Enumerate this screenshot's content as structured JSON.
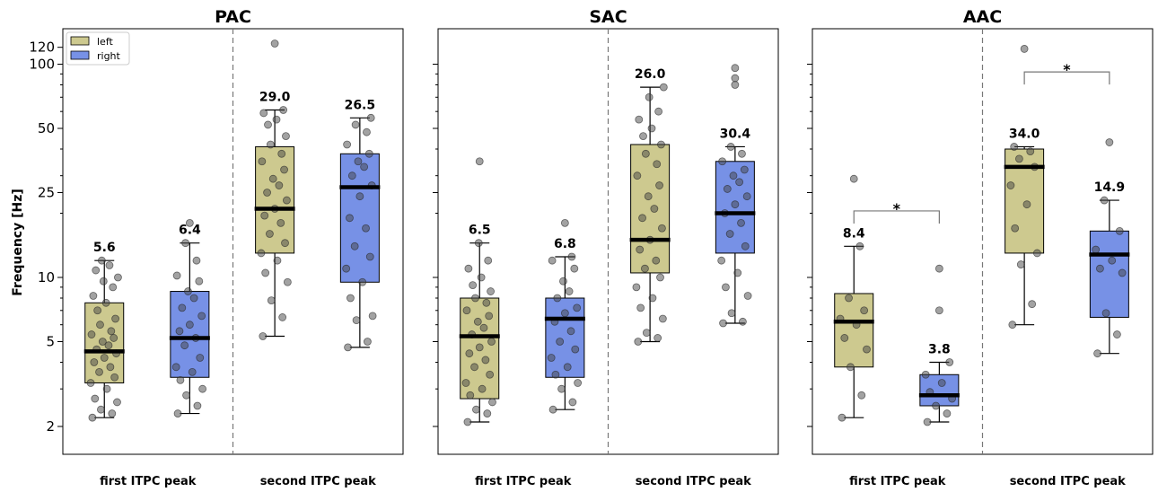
{
  "chart_data": [
    {
      "type": "box",
      "title": "PAC",
      "ylabel": "Frequency [Hz]",
      "yscale": "log",
      "ylim": [
        1.6,
        145
      ],
      "yticks": [
        2,
        5,
        10,
        25,
        50,
        100,
        120
      ],
      "categories": [
        "first ITPC peak",
        "second ITPC peak"
      ],
      "legend": {
        "position": "top-left",
        "entries": [
          {
            "name": "left",
            "color": "#cdc98f"
          },
          {
            "name": "right",
            "color": "#7791e6"
          }
        ]
      },
      "boxes": [
        {
          "category": "first ITPC peak",
          "group": "left",
          "color": "#cdc98f",
          "whisker_low": 2.2,
          "q1": 3.2,
          "median": 4.5,
          "q3": 7.6,
          "whisker_high": 12.0,
          "label": "5.6",
          "points": [
            2.2,
            2.3,
            2.4,
            2.6,
            2.7,
            3.0,
            3.2,
            3.4,
            3.6,
            3.8,
            4.0,
            4.2,
            4.4,
            4.6,
            4.8,
            5.0,
            5.2,
            5.4,
            5.6,
            6.0,
            6.4,
            7.0,
            7.6,
            8.2,
            9.0,
            9.6,
            10.0,
            10.8,
            11.4,
            12.0
          ]
        },
        {
          "category": "first ITPC peak",
          "group": "right",
          "color": "#7791e6",
          "whisker_low": 2.3,
          "q1": 3.4,
          "median": 5.2,
          "q3": 8.6,
          "whisker_high": 14.5,
          "label": "6.4",
          "points": [
            2.3,
            2.5,
            2.8,
            3.0,
            3.3,
            3.6,
            3.8,
            4.2,
            4.8,
            5.2,
            5.6,
            6.0,
            6.6,
            7.2,
            8.0,
            8.6,
            9.6,
            10.2,
            12.0,
            14.5,
            18.0
          ]
        },
        {
          "category": "second ITPC peak",
          "group": "left",
          "color": "#cdc98f",
          "whisker_low": 5.3,
          "q1": 13.0,
          "median": 21.0,
          "q3": 41.0,
          "whisker_high": 61.0,
          "label": "29.0",
          "points": [
            5.3,
            6.5,
            7.8,
            9.5,
            10.5,
            12.0,
            13.0,
            14.5,
            16.0,
            18.0,
            19.5,
            21.0,
            23.0,
            25.0,
            27.0,
            29.0,
            32.0,
            35.0,
            38.0,
            42.0,
            46.0,
            52.0,
            55.0,
            59.0,
            61.0,
            125.0
          ]
        },
        {
          "category": "second ITPC peak",
          "group": "right",
          "color": "#7791e6",
          "whisker_low": 4.7,
          "q1": 9.5,
          "median": 26.5,
          "q3": 38.0,
          "whisker_high": 56.0,
          "label": "26.5",
          "points": [
            4.7,
            5.0,
            6.3,
            6.6,
            8.0,
            9.5,
            11.0,
            12.5,
            14.0,
            17.0,
            19.0,
            24.0,
            27.0,
            30.0,
            33.0,
            35.0,
            38.0,
            42.0,
            48.0,
            52.0,
            56.0
          ]
        }
      ]
    },
    {
      "type": "box",
      "title": "SAC",
      "yscale": "log",
      "ylim": [
        1.6,
        145
      ],
      "categories": [
        "first ITPC peak",
        "second ITPC peak"
      ],
      "boxes": [
        {
          "category": "first ITPC peak",
          "group": "left",
          "color": "#cdc98f",
          "whisker_low": 2.1,
          "q1": 2.7,
          "median": 5.3,
          "q3": 8.0,
          "whisker_high": 14.5,
          "label": "6.5",
          "points": [
            2.1,
            2.3,
            2.4,
            2.6,
            2.8,
            3.0,
            3.2,
            3.5,
            3.8,
            4.1,
            4.4,
            4.7,
            5.0,
            5.4,
            5.8,
            6.2,
            6.6,
            7.0,
            7.6,
            8.0,
            8.6,
            9.2,
            10.0,
            11.0,
            12.0,
            14.5,
            35.0
          ]
        },
        {
          "category": "first ITPC peak",
          "group": "right",
          "color": "#7791e6",
          "whisker_low": 2.4,
          "q1": 3.4,
          "median": 6.4,
          "q3": 8.0,
          "whisker_high": 12.5,
          "label": "6.8",
          "points": [
            2.4,
            2.6,
            3.0,
            3.2,
            3.5,
            3.8,
            4.2,
            4.6,
            5.0,
            5.6,
            6.2,
            6.8,
            7.2,
            8.0,
            8.6,
            9.6,
            11.0,
            12.0,
            12.5,
            18.0
          ]
        },
        {
          "category": "second ITPC peak",
          "group": "left",
          "color": "#cdc98f",
          "whisker_low": 5.0,
          "q1": 10.5,
          "median": 15.0,
          "q3": 42.0,
          "whisker_high": 78.0,
          "label": "26.0",
          "points": [
            5.0,
            5.2,
            5.5,
            6.4,
            7.2,
            8.0,
            9.0,
            10.0,
            11.0,
            12.0,
            13.5,
            15.0,
            17.0,
            19.0,
            21.0,
            24.0,
            27.0,
            30.0,
            34.0,
            38.0,
            42.0,
            46.0,
            50.0,
            55.0,
            60.0,
            70.0,
            78.0
          ]
        },
        {
          "category": "second ITPC peak",
          "group": "right",
          "color": "#7791e6",
          "whisker_low": 6.1,
          "q1": 13.0,
          "median": 20.0,
          "q3": 35.0,
          "whisker_high": 41.0,
          "label": "30.4",
          "points": [
            6.1,
            6.2,
            6.8,
            8.2,
            9.0,
            10.5,
            12.0,
            14.0,
            16.0,
            18.0,
            20.0,
            22.0,
            24.0,
            26.0,
            28.0,
            30.0,
            32.0,
            35.0,
            38.0,
            41.0,
            80.0,
            86.0,
            96.0
          ]
        }
      ]
    },
    {
      "type": "box",
      "title": "AAC",
      "yscale": "log",
      "ylim": [
        1.6,
        145
      ],
      "categories": [
        "first ITPC peak",
        "second ITPC peak"
      ],
      "boxes": [
        {
          "category": "first ITPC peak",
          "group": "left",
          "color": "#cdc98f",
          "whisker_low": 2.2,
          "q1": 3.8,
          "median": 6.2,
          "q3": 8.4,
          "whisker_high": 14.0,
          "label": "8.4",
          "points": [
            2.2,
            2.8,
            3.8,
            4.6,
            5.2,
            6.0,
            6.4,
            7.0,
            8.0,
            14.0,
            29.0
          ]
        },
        {
          "category": "first ITPC peak",
          "group": "right",
          "color": "#7791e6",
          "whisker_low": 2.1,
          "q1": 2.5,
          "median": 2.8,
          "q3": 3.5,
          "whisker_high": 4.0,
          "label": "3.8",
          "points": [
            2.1,
            2.3,
            2.5,
            2.7,
            2.9,
            3.2,
            3.5,
            4.0,
            7.0,
            11.0
          ]
        },
        {
          "category": "second ITPC peak",
          "group": "left",
          "color": "#cdc98f",
          "whisker_low": 6.0,
          "q1": 13.0,
          "median": 33.0,
          "q3": 40.0,
          "whisker_high": 41.0,
          "label": "34.0",
          "points": [
            6.0,
            7.5,
            11.5,
            13.0,
            17.0,
            22.0,
            27.0,
            33.0,
            36.0,
            39.0,
            41.0,
            118.0
          ]
        },
        {
          "category": "second ITPC peak",
          "group": "right",
          "color": "#7791e6",
          "whisker_low": 4.4,
          "q1": 6.5,
          "median": 12.8,
          "q3": 16.5,
          "whisker_high": 23.0,
          "label": "14.9",
          "points": [
            4.4,
            5.4,
            6.8,
            10.5,
            11.0,
            12.0,
            13.5,
            16.5,
            23.0,
            43.0
          ]
        }
      ],
      "significance": [
        {
          "category": "first ITPC peak",
          "text": "*",
          "y": 20.5
        },
        {
          "category": "second ITPC peak",
          "text": "*",
          "y": 92.0
        }
      ]
    }
  ]
}
